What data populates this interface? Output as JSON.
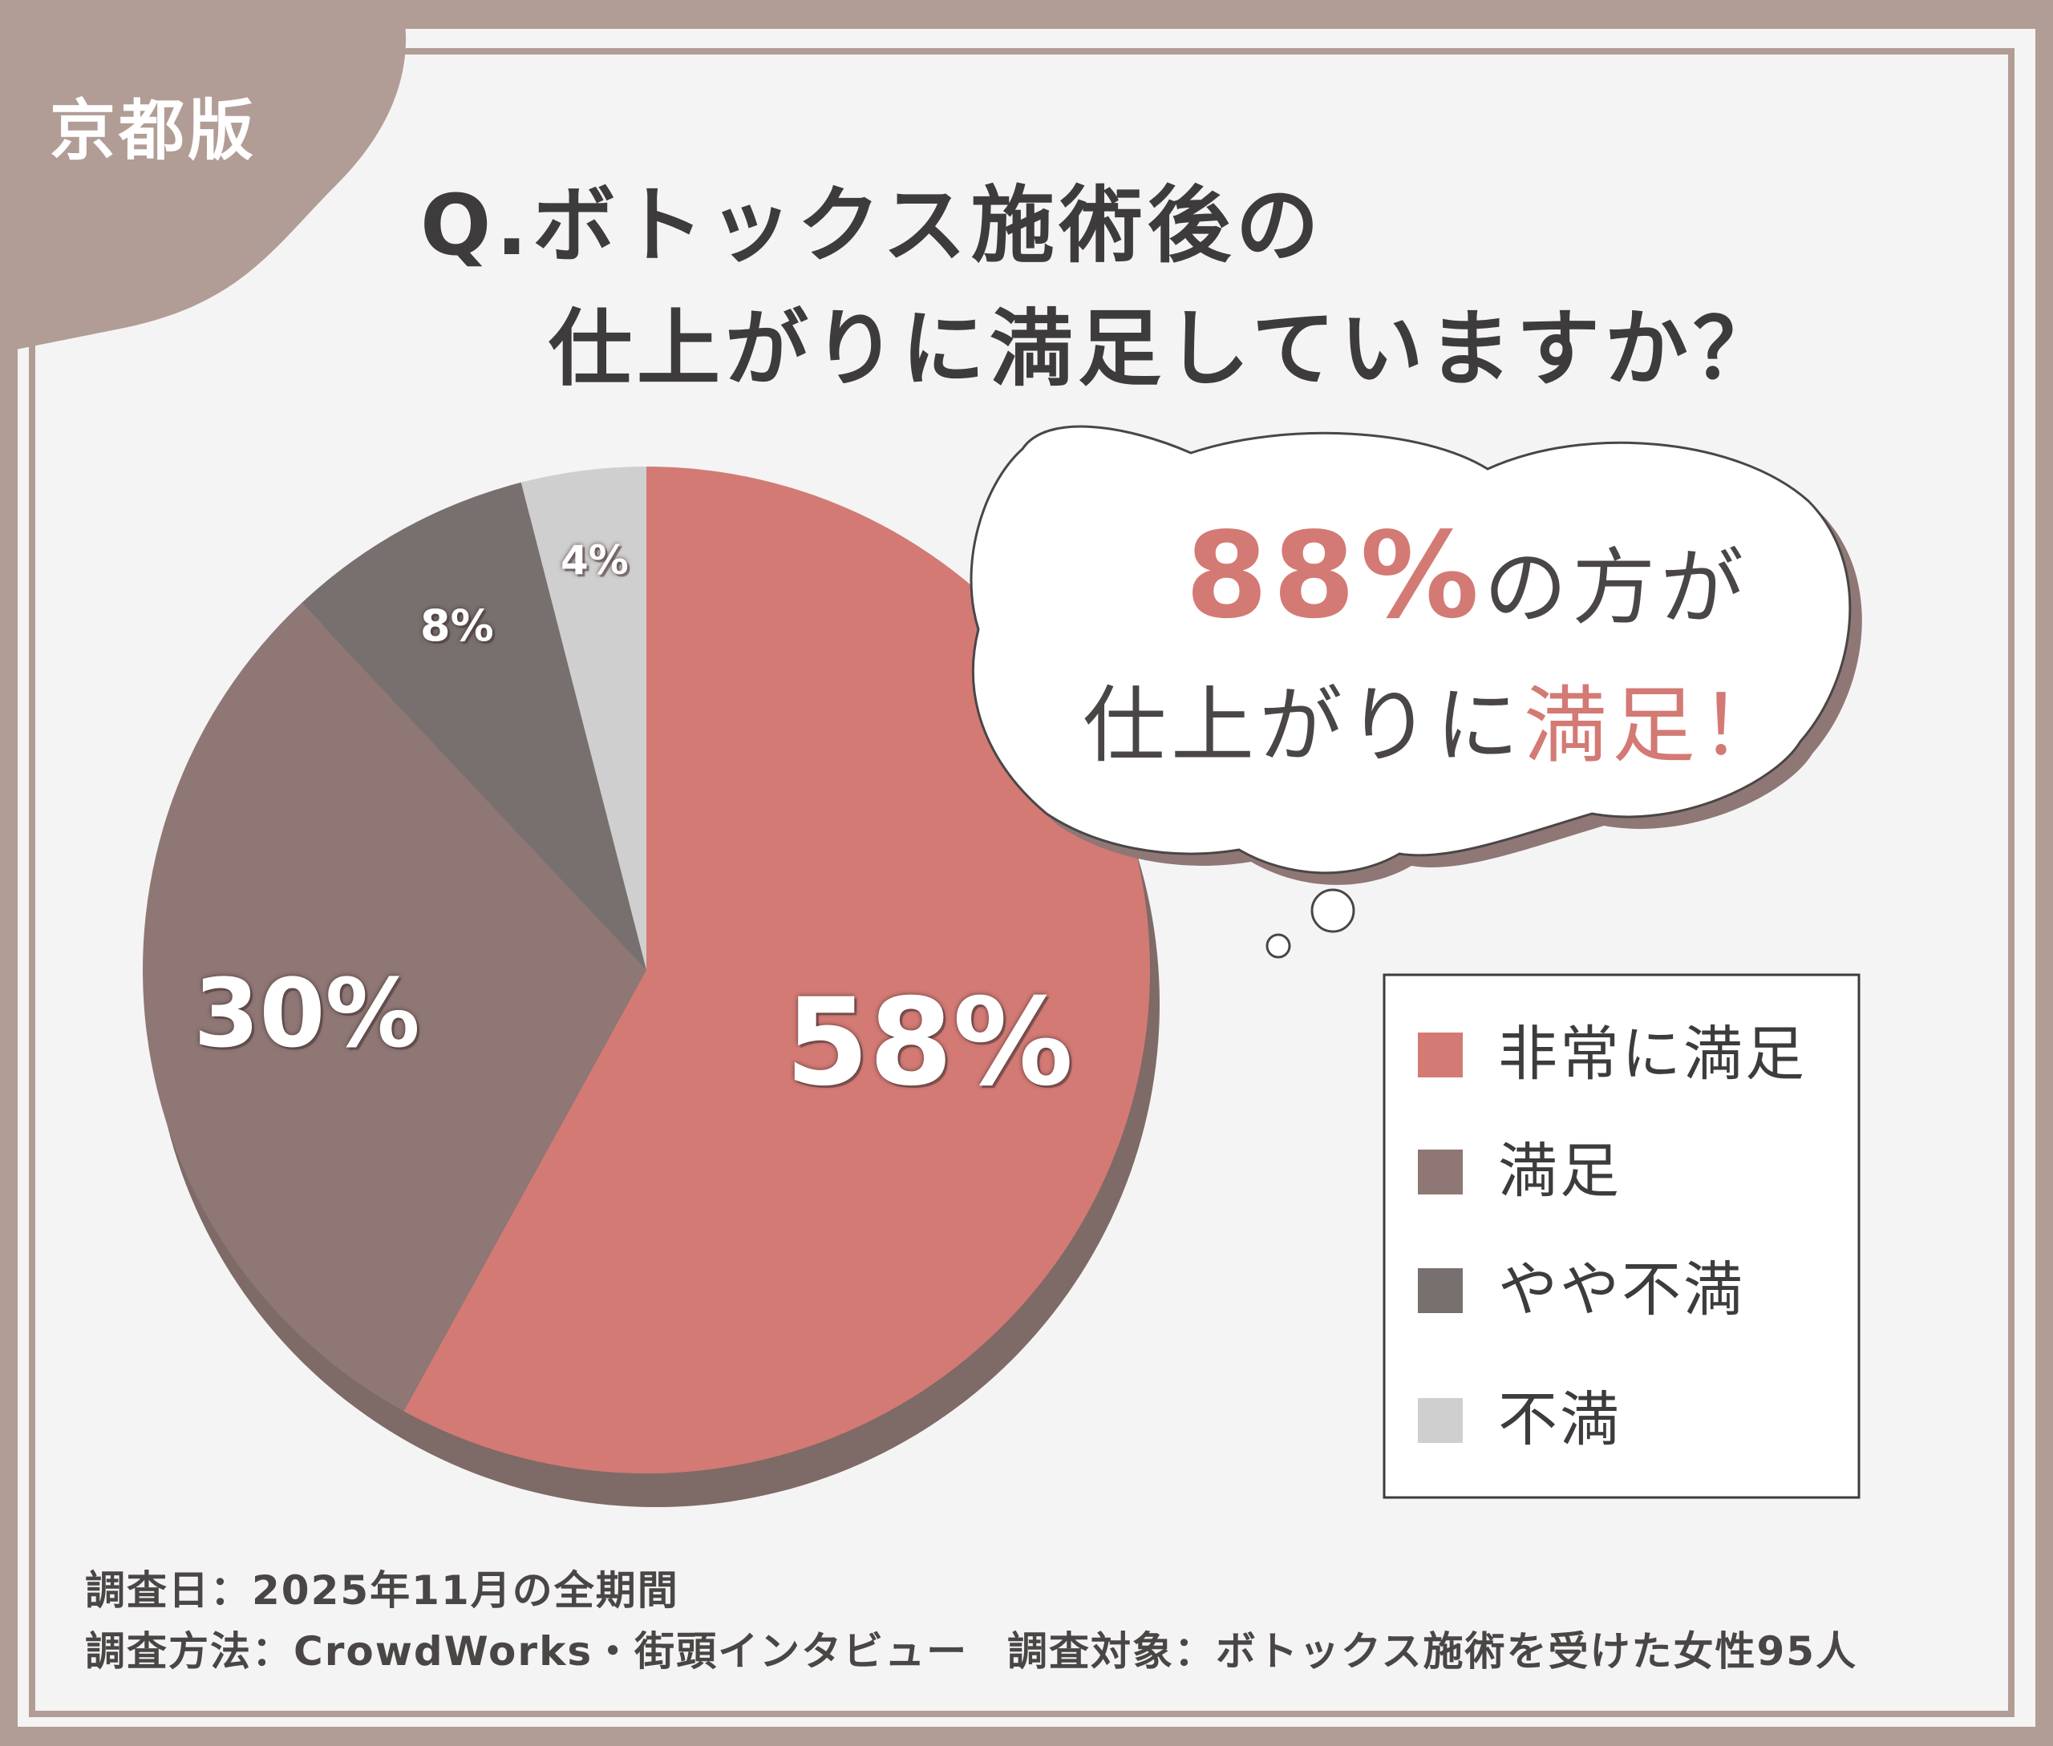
{
  "header": {
    "region_tag": "京都版",
    "question_line1": "Q.ボトックス施術後の",
    "question_line2": "仕上がりに満足していますか？"
  },
  "callout": {
    "highlight_value": "88%",
    "line1_rest": "の方が",
    "line2_start": "仕上がりに",
    "line2_accent": "満足！"
  },
  "colors": {
    "very_satisfied": "#d37a75",
    "satisfied": "#8e7775",
    "somewhat_dissatisfied": "#77706f",
    "dissatisfied": "#d0cfcf",
    "frame": "#b19d95",
    "text": "#3d3b3b"
  },
  "chart_data": {
    "type": "pie",
    "categories": [
      "非常に満足",
      "満足",
      "やや不満",
      "不満"
    ],
    "values": [
      58,
      30,
      8,
      4
    ],
    "value_labels": [
      "58%",
      "30%",
      "8%",
      "4%"
    ],
    "legend_position": "right"
  },
  "footer": {
    "date_line": "調査日：2025年11月の全期間",
    "method_line": "調査方法：CrowdWorks・街頭インタビュー",
    "target_line": "調査対象：ボトックス施術を受けた女性95人"
  }
}
